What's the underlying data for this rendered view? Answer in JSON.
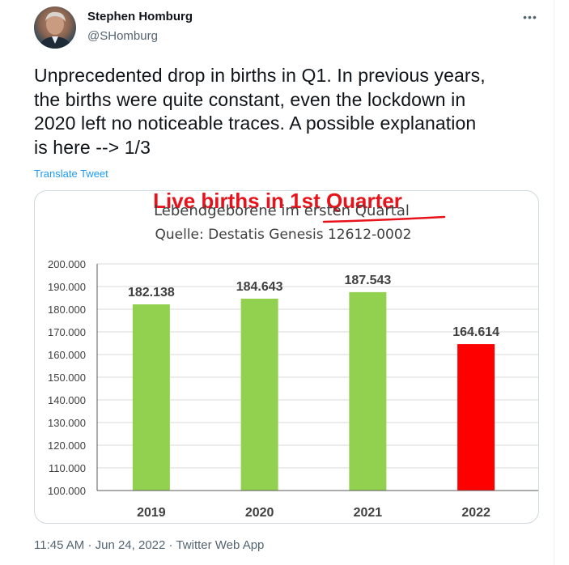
{
  "tweet": {
    "display_name": "Stephen Homburg",
    "handle": "@SHomburg",
    "more_icon": "more-horizontal-icon",
    "text_lines": [
      "Unprecedented drop in births in Q1. In previous years,",
      "the births were quite constant, even the lockdown in",
      "2020 left no noticeable traces. A possible explanation",
      "is here --> 1/3"
    ],
    "translate_label": "Translate Tweet",
    "time": "11:45 AM",
    "date": "Jun 24, 2022",
    "source": "Twitter Web App",
    "separator": "·"
  },
  "chart_data": {
    "type": "bar",
    "title": "Live births in 1st Quarter",
    "subtitle_prefix": "Lebendgeborene im ",
    "subtitle_underlined": "ersten Quartal",
    "source_note": "Quelle: Destatis Genesis 12612-0002",
    "categories": [
      "2019",
      "2020",
      "2021",
      "2022"
    ],
    "values": [
      182138,
      184643,
      187543,
      164614
    ],
    "value_labels": [
      "182.138",
      "184.643",
      "187.543",
      "164.614"
    ],
    "bar_colors": [
      "#92d050",
      "#92d050",
      "#92d050",
      "#ff0000"
    ],
    "ylim": [
      100000,
      200000
    ],
    "yticks": [
      200000,
      190000,
      180000,
      170000,
      160000,
      150000,
      140000,
      130000,
      120000,
      110000,
      100000
    ],
    "ytick_labels": [
      "200.000",
      "190.000",
      "180.000",
      "170.000",
      "160.000",
      "150.000",
      "140.000",
      "130.000",
      "120.000",
      "110.000",
      "100.000"
    ],
    "grid": true,
    "title_color": "#e8121b"
  }
}
